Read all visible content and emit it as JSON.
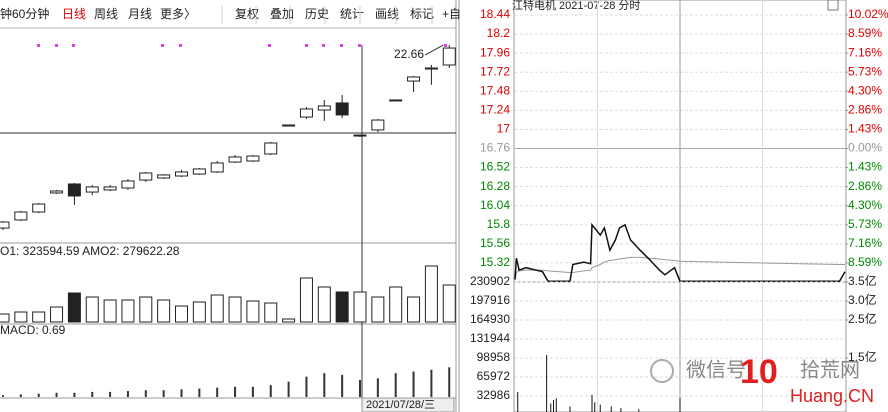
{
  "toolbar": {
    "items": [
      "钟",
      "60分钟",
      "日线",
      "周线",
      "月线",
      "更多〉",
      "复权",
      "叠加",
      "历史",
      "统计",
      "画线",
      "标记",
      "+自"
    ],
    "active": 2
  },
  "watermark": {
    "left": "微信号",
    "right": "拾荒网",
    "logo": "10",
    "site": "Huang.CN"
  },
  "chart_data": [
    {
      "type": "candlestick",
      "annotation": "22.66",
      "x_label": "2021/07/28/三",
      "color": "#222222",
      "ylim": [
        10,
        24
      ],
      "open": [
        11.13,
        11.67,
        12.2,
        13.47,
        14.07,
        13.53,
        13.67,
        13.8,
        14.33,
        14.47,
        14.6,
        14.73,
        14.87,
        15.53,
        15.6,
        16.07,
        18.0,
        18.53,
        19.0,
        19.47,
        17.33,
        17.67,
        19.67,
        20.93,
        21.73,
        22.0
      ],
      "high": [
        11.6,
        12.27,
        12.8,
        13.67,
        14.13,
        14.0,
        14.0,
        14.4,
        14.87,
        14.73,
        15.0,
        15.13,
        15.6,
        16.0,
        16.0,
        16.87,
        18.0,
        19.2,
        19.67,
        20.0,
        17.33,
        18.4,
        19.67,
        21.27,
        22.0,
        23.33
      ],
      "low": [
        11.0,
        11.6,
        12.13,
        13.4,
        12.67,
        13.33,
        13.6,
        13.67,
        14.2,
        14.4,
        14.53,
        14.67,
        14.8,
        15.47,
        15.53,
        16.0,
        18.0,
        18.4,
        18.27,
        18.47,
        17.2,
        17.53,
        19.67,
        20.2,
        20.67,
        21.8
      ],
      "close": [
        11.53,
        12.2,
        12.73,
        13.6,
        13.27,
        13.87,
        13.87,
        14.27,
        14.8,
        14.67,
        14.87,
        15.07,
        15.47,
        15.87,
        15.93,
        16.8,
        18.0,
        19.07,
        19.27,
        18.67,
        17.33,
        18.33,
        19.67,
        21.2,
        21.8,
        23.13
      ]
    },
    {
      "type": "bar",
      "title": "O1: 323594.59  AMO2: 279622.28",
      "color": "#222222",
      "ylim": [
        0,
        450000
      ],
      "values": [
        56250,
        70310,
        70310,
        105470,
        203900,
        175780,
        154690,
        154690,
        175780,
        154690,
        112500,
        140620,
        189840,
        175780,
        147660,
        133590,
        21090,
        309380,
        246090,
        210940,
        210940,
        175780,
        246090,
        175780,
        393750,
        260160
      ]
    },
    {
      "type": "bar",
      "title": "MACD: 0.69",
      "color": "#333333",
      "ylim": [
        0,
        0.4
      ],
      "values": [
        0.02,
        0.03,
        0.04,
        0.05,
        0.05,
        0.06,
        0.06,
        0.07,
        0.08,
        0.08,
        0.09,
        0.1,
        0.11,
        0.12,
        0.12,
        0.14,
        0.18,
        0.24,
        0.28,
        0.26,
        0.2,
        0.22,
        0.28,
        0.3,
        0.32,
        0.35
      ]
    },
    {
      "type": "line",
      "title": "江特电机  2021-07-28  分时",
      "xlim": [
        0,
        240
      ],
      "ylim": [
        15.08,
        18.44
      ],
      "yticks": [
        18.44,
        18.2,
        17.96,
        17.72,
        17.48,
        17.24,
        17.0,
        16.76,
        16.52,
        16.28,
        16.04,
        15.8,
        15.56,
        15.32
      ],
      "y2lim": [
        -10.02,
        10.02
      ],
      "y2ticks": [
        {
          "value": 10.02,
          "label": "10.02%"
        },
        {
          "value": 8.59,
          "label": "8.59%"
        },
        {
          "value": 7.16,
          "label": "7.16%"
        },
        {
          "value": 5.73,
          "label": "5.73%"
        },
        {
          "value": 4.3,
          "label": "4.30%"
        },
        {
          "value": 2.86,
          "label": "2.86%"
        },
        {
          "value": 1.43,
          "label": "1.43%"
        },
        {
          "value": 0,
          "label": "0.00%"
        },
        {
          "value": -1.43,
          "label": "1.43%"
        },
        {
          "value": -2.86,
          "label": "2.86%"
        },
        {
          "value": -4.3,
          "label": "4.30%"
        },
        {
          "value": -5.73,
          "label": "5.73%"
        },
        {
          "value": -7.16,
          "label": "7.16%"
        },
        {
          "value": -8.59,
          "label": "8.59%"
        }
      ],
      "grid": true,
      "x": [
        0,
        1,
        3,
        8,
        20,
        24,
        40,
        42,
        50,
        55,
        56,
        62,
        65,
        69,
        73,
        76,
        80,
        84,
        91,
        98,
        105,
        109,
        116,
        120,
        236,
        240
      ],
      "series": [
        {
          "color": "#111111",
          "values": [
            15.11,
            15.38,
            15.23,
            15.26,
            15.21,
            15.09,
            15.09,
            15.3,
            15.33,
            15.31,
            15.8,
            15.67,
            15.76,
            15.48,
            15.61,
            15.76,
            15.8,
            15.61,
            15.48,
            15.36,
            15.23,
            15.17,
            15.26,
            15.09,
            15.09,
            15.21
          ]
        },
        {
          "color": "#999999",
          "values": [
            15.11,
            15.2,
            15.22,
            15.23,
            15.23,
            15.22,
            15.2,
            15.2,
            15.22,
            15.23,
            15.26,
            15.3,
            15.33,
            15.35,
            15.36,
            15.37,
            15.38,
            15.39,
            15.39,
            15.38,
            15.37,
            15.36,
            15.35,
            15.34,
            15.3,
            15.3
          ]
        }
      ]
    },
    {
      "type": "bar",
      "xlim": [
        0,
        240
      ],
      "ylim": [
        0,
        230902
      ],
      "color": "#111111",
      "yticks": [
        230902,
        197916,
        164930,
        131944,
        98958,
        65972,
        32986
      ],
      "y2lim": [
        0,
        3.5
      ],
      "y2ticks": [
        {
          "value": 3.5,
          "label": "3.5亿"
        },
        {
          "value": 3.0,
          "label": "3.0亿"
        },
        {
          "value": 2.5,
          "label": "2.5亿"
        },
        {
          "value": 1.5,
          "label": "1.5亿"
        }
      ],
      "x": [
        2,
        23,
        26,
        28,
        30,
        40,
        56,
        58,
        62,
        70,
        77,
        90,
        120
      ],
      "values": [
        40000,
        104000,
        20000,
        26000,
        29000,
        15000,
        35000,
        22000,
        18000,
        15000,
        12000,
        10000,
        30000
      ]
    }
  ]
}
